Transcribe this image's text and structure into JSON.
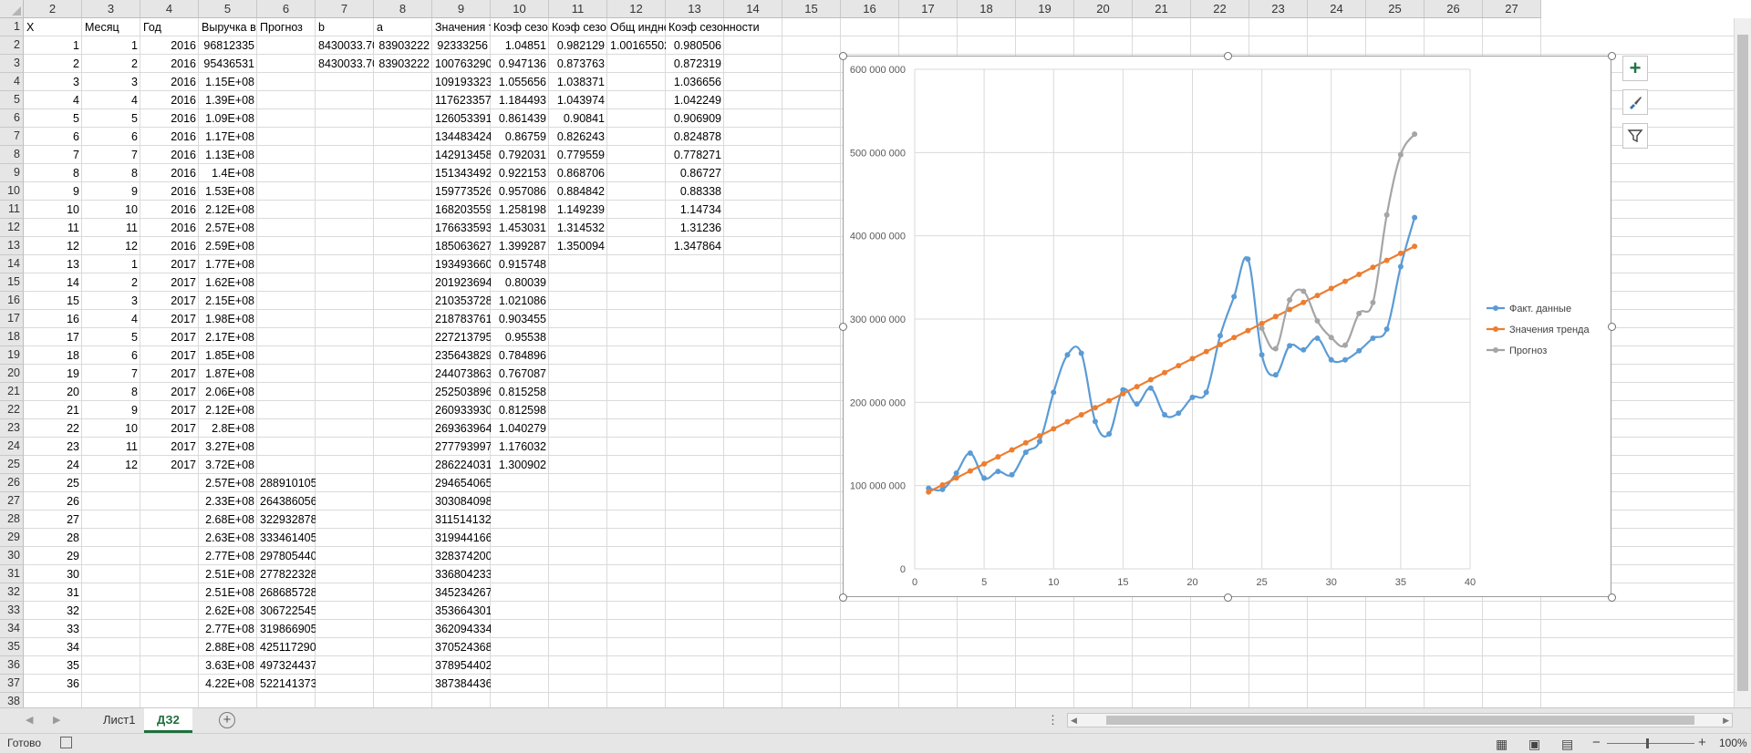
{
  "columns": [
    "2",
    "3",
    "4",
    "5",
    "6",
    "7",
    "8",
    "9",
    "10",
    "11",
    "12",
    "13",
    "14",
    "15",
    "16",
    "17",
    "18",
    "19",
    "20",
    "21",
    "22",
    "23",
    "24",
    "25",
    "26",
    "27"
  ],
  "rows": [
    "1",
    "2",
    "3",
    "4",
    "5",
    "6",
    "7",
    "8",
    "9",
    "10",
    "11",
    "12",
    "13",
    "14",
    "15",
    "16",
    "17",
    "18",
    "19",
    "20",
    "21",
    "22",
    "23",
    "24",
    "25",
    "26",
    "27",
    "28",
    "29",
    "30",
    "31",
    "32",
    "33",
    "34",
    "35",
    "36",
    "37",
    "38"
  ],
  "headers": {
    "x": "X",
    "month": "Месяц",
    "year": "Год",
    "revenue": "Выручка в",
    "forecast": "Прогноз",
    "b": "b",
    "a": "a",
    "trend": "Значения т",
    "coef1": "Коэф сезо",
    "coef2": "Коэф сезо",
    "total_index": "Общ индне",
    "season_coef": "Коэф сезонности"
  },
  "params": {
    "b_row2": "8430033.702",
    "b_row3": "8430033.702",
    "a_row2": "83903222",
    "a_row3": "83903222",
    "total_index_row2": "1.001655027"
  },
  "x": [
    "1",
    "2",
    "3",
    "4",
    "5",
    "6",
    "7",
    "8",
    "9",
    "10",
    "11",
    "12",
    "13",
    "14",
    "15",
    "16",
    "17",
    "18",
    "19",
    "20",
    "21",
    "22",
    "23",
    "24",
    "25",
    "26",
    "27",
    "28",
    "29",
    "30",
    "31",
    "32",
    "33",
    "34",
    "35",
    "36"
  ],
  "month": [
    "1",
    "2",
    "3",
    "4",
    "5",
    "6",
    "7",
    "8",
    "9",
    "10",
    "11",
    "12",
    "1",
    "2",
    "3",
    "4",
    "5",
    "6",
    "7",
    "8",
    "9",
    "10",
    "11",
    "12"
  ],
  "year": [
    "2016",
    "2016",
    "2016",
    "2016",
    "2016",
    "2016",
    "2016",
    "2016",
    "2016",
    "2016",
    "2016",
    "2016",
    "2017",
    "2017",
    "2017",
    "2017",
    "2017",
    "2017",
    "2017",
    "2017",
    "2017",
    "2017",
    "2017",
    "2017"
  ],
  "revenue": [
    "96812335",
    "95436531",
    "1.15E+08",
    "1.39E+08",
    "1.09E+08",
    "1.17E+08",
    "1.13E+08",
    "1.4E+08",
    "1.53E+08",
    "2.12E+08",
    "2.57E+08",
    "2.59E+08",
    "1.77E+08",
    "1.62E+08",
    "2.15E+08",
    "1.98E+08",
    "2.17E+08",
    "1.85E+08",
    "1.87E+08",
    "2.06E+08",
    "2.12E+08",
    "2.8E+08",
    "3.27E+08",
    "3.72E+08",
    "2.57E+08",
    "2.33E+08",
    "2.68E+08",
    "2.63E+08",
    "2.77E+08",
    "2.51E+08",
    "2.51E+08",
    "2.62E+08",
    "2.77E+08",
    "2.88E+08",
    "3.63E+08",
    "4.22E+08"
  ],
  "forecast": [
    "288910105.1",
    "264386056.6",
    "322932878.5",
    "333461405.5",
    "297805440.4",
    "277822328.6",
    "268685728",
    "306722545.7",
    "319866905.7",
    "425117290",
    "497324437.1",
    "522141373"
  ],
  "trend": [
    "92333256",
    "100763290",
    "109193323",
    "117623357",
    "126053391",
    "134483424",
    "142913458",
    "151343492",
    "159773526",
    "168203559",
    "176633593",
    "185063627",
    "193493660",
    "201923694",
    "210353728",
    "218783761",
    "227213795",
    "235643829",
    "244073863",
    "252503896",
    "260933930",
    "269363964",
    "277793997",
    "286224031",
    "294654065",
    "303084098",
    "311514132",
    "319944166",
    "328374200",
    "336804233",
    "345234267",
    "353664301",
    "362094334",
    "370524368",
    "378954402",
    "387384436"
  ],
  "coef1": [
    "1.04851",
    "0.947136",
    "1.055656",
    "1.184493",
    "0.861439",
    "0.86759",
    "0.792031",
    "0.922153",
    "0.957086",
    "1.258198",
    "1.453031",
    "1.399287",
    "0.915748",
    "0.80039",
    "1.021086",
    "0.903455",
    "0.95538",
    "0.784896",
    "0.767087",
    "0.815258",
    "0.812598",
    "1.040279",
    "1.176032",
    "1.300902"
  ],
  "coef2": [
    "0.982129",
    "0.873763",
    "1.038371",
    "1.043974",
    "0.90841",
    "0.826243",
    "0.779559",
    "0.868706",
    "0.884842",
    "1.149239",
    "1.314532",
    "1.350094"
  ],
  "season_coef": [
    "0.980506",
    "0.872319",
    "1.036656",
    "1.042249",
    "0.906909",
    "0.824878",
    "0.778271",
    "0.86727",
    "0.88338",
    "1.14734",
    "1.31236",
    "1.347864"
  ],
  "chart_data": {
    "type": "line",
    "title": "",
    "xlabel": "",
    "ylabel": "",
    "xlim": [
      0,
      40
    ],
    "ylim": [
      0,
      600000000
    ],
    "x_ticks": [
      "0",
      "5",
      "10",
      "15",
      "20",
      "25",
      "30",
      "35",
      "40"
    ],
    "y_ticks": [
      "0",
      "100 000 000",
      "200 000 000",
      "300 000 000",
      "400 000 000",
      "500 000 000",
      "600 000 000"
    ],
    "grid": true,
    "legend": "right",
    "x": [
      1,
      2,
      3,
      4,
      5,
      6,
      7,
      8,
      9,
      10,
      11,
      12,
      13,
      14,
      15,
      16,
      17,
      18,
      19,
      20,
      21,
      22,
      23,
      24,
      25,
      26,
      27,
      28,
      29,
      30,
      31,
      32,
      33,
      34,
      35,
      36
    ],
    "series": [
      {
        "name": "Факт. данные",
        "color": "#5b9bd5",
        "x": [
          1,
          2,
          3,
          4,
          5,
          6,
          7,
          8,
          9,
          10,
          11,
          12,
          13,
          14,
          15,
          16,
          17,
          18,
          19,
          20,
          21,
          22,
          23,
          24,
          25,
          26,
          27,
          28,
          29,
          30,
          31,
          32,
          33,
          34,
          35,
          36
        ],
        "values": [
          96812335,
          95436531,
          115000000,
          139000000,
          109000000,
          117000000,
          113000000,
          140000000,
          153000000,
          212000000,
          257000000,
          259000000,
          177000000,
          162000000,
          215000000,
          198000000,
          217000000,
          185000000,
          187000000,
          206000000,
          212000000,
          280000000,
          327000000,
          372000000,
          257000000,
          233000000,
          268000000,
          263000000,
          277000000,
          251000000,
          251000000,
          262000000,
          277000000,
          288000000,
          363000000,
          422000000
        ]
      },
      {
        "name": "Значения тренда",
        "color": "#ed7d31",
        "x": [
          1,
          2,
          3,
          4,
          5,
          6,
          7,
          8,
          9,
          10,
          11,
          12,
          13,
          14,
          15,
          16,
          17,
          18,
          19,
          20,
          21,
          22,
          23,
          24,
          25,
          26,
          27,
          28,
          29,
          30,
          31,
          32,
          33,
          34,
          35,
          36
        ],
        "values": [
          92333256,
          100763290,
          109193323,
          117623357,
          126053391,
          134483424,
          142913458,
          151343492,
          159773526,
          168203559,
          176633593,
          185063627,
          193493660,
          201923694,
          210353728,
          218783761,
          227213795,
          235643829,
          244073863,
          252503896,
          260933930,
          269363964,
          277793997,
          286224031,
          294654065,
          303084098,
          311514132,
          319944166,
          328374200,
          336804233,
          345234267,
          353664301,
          362094334,
          370524368,
          378954402,
          387384436
        ]
      },
      {
        "name": "Прогноз",
        "color": "#a5a5a5",
        "x": [
          25,
          26,
          27,
          28,
          29,
          30,
          31,
          32,
          33,
          34,
          35,
          36
        ],
        "values": [
          288910105.1,
          264386056.6,
          322932878.5,
          333461405.5,
          297805440.4,
          277822328.6,
          268685728,
          306722545.7,
          319866905.7,
          425117290,
          497324437.1,
          522141373
        ]
      }
    ]
  },
  "sheets": [
    "Лист1",
    "ДЗ2"
  ],
  "active_sheet": "ДЗ2",
  "status": {
    "ready": "Готово",
    "zoom": "100%"
  },
  "icons": {
    "add_chart_element": "plus-icon",
    "chart_styles": "brush-icon",
    "chart_filters": "filter-icon"
  }
}
